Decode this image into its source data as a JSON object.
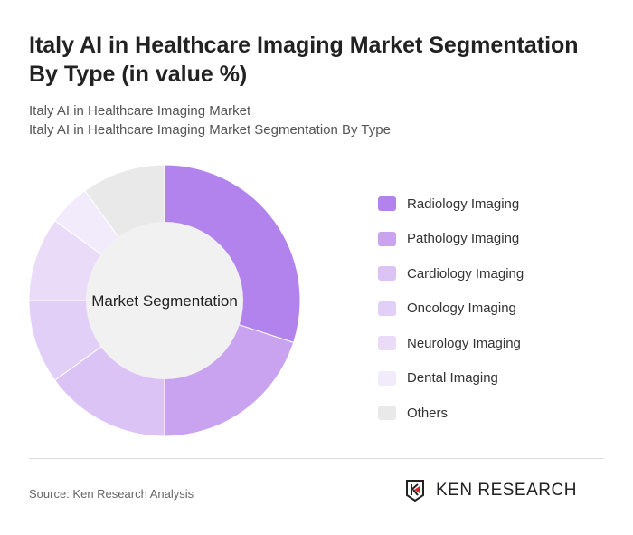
{
  "title": "Italy AI in Healthcare Imaging Market Segmentation By Type (in value %)",
  "subtitle1": "Italy AI in Healthcare Imaging Market",
  "subtitle2": "Italy AI in Healthcare Imaging Market Segmentation By Type",
  "source": "Source: Ken Research Analysis",
  "logo": "KEN RESEARCH",
  "chart_data": {
    "type": "pie",
    "variant": "donut",
    "center_label": "Market Segmentation",
    "legend_position": "right",
    "categories": [
      "Radiology Imaging",
      "Pathology Imaging",
      "Cardiology Imaging",
      "Oncology Imaging",
      "Neurology Imaging",
      "Dental Imaging",
      "Others"
    ],
    "values": [
      30,
      20,
      15,
      10,
      10,
      5,
      10
    ],
    "colors": [
      "#b283ec",
      "#c9a2f0",
      "#dcc3f6",
      "#e2cff7",
      "#eadcf9",
      "#f2ebfc",
      "#e9e9e9"
    ]
  }
}
